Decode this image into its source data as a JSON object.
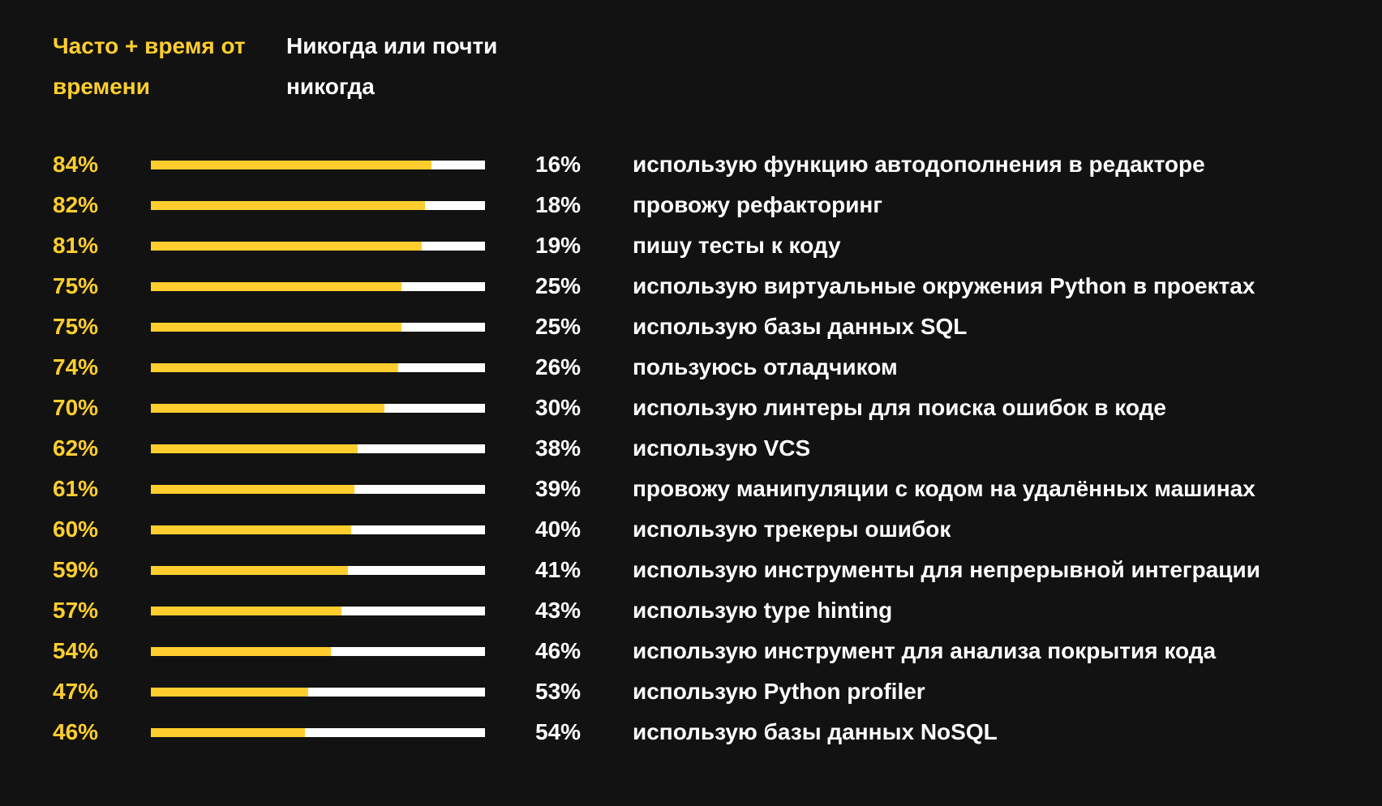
{
  "colors": {
    "background": "#121212",
    "often": "#ffce2e",
    "never": "#ffffff"
  },
  "legend": {
    "often_label": "Часто + время от времени",
    "never_label": "Никогда или почти никогда"
  },
  "chart_data": {
    "type": "bar",
    "orientation": "horizontal",
    "stacked": true,
    "xlim": [
      0,
      100
    ],
    "categories": [
      "использую функцию автодополнения в редакторе",
      "провожу рефакторинг",
      "пишу тесты к коду",
      "использую виртуальные окружения Python в проектах",
      "использую базы данных SQL",
      "пользуюсь отладчиком",
      "использую линтеры для поиска ошибок в коде",
      "использую VCS",
      "провожу манипуляции с кодом на удалённых машинах",
      "использую трекеры ошибок",
      "использую инструменты для непрерывной интеграции",
      "использую type hinting",
      "использую инструмент для анализа покрытия кода",
      "использую Python profiler",
      "использую базы данных NoSQL"
    ],
    "series": [
      {
        "name": "Часто + время от времени",
        "values": [
          84,
          82,
          81,
          75,
          75,
          74,
          70,
          62,
          61,
          60,
          59,
          57,
          54,
          47,
          46
        ],
        "labels": [
          "84%",
          "82%",
          "81%",
          "75%",
          "75%",
          "74%",
          "70%",
          "62%",
          "61%",
          "60%",
          "59%",
          "57%",
          "54%",
          "47%",
          "46%"
        ]
      },
      {
        "name": "Никогда или почти никогда",
        "values": [
          16,
          18,
          19,
          25,
          25,
          26,
          30,
          38,
          39,
          40,
          41,
          43,
          46,
          53,
          54
        ],
        "labels": [
          "16%",
          "18%",
          "19%",
          "25%",
          "25%",
          "26%",
          "30%",
          "38%",
          "39%",
          "40%",
          "41%",
          "43%",
          "46%",
          "53%",
          "54%"
        ]
      }
    ]
  }
}
